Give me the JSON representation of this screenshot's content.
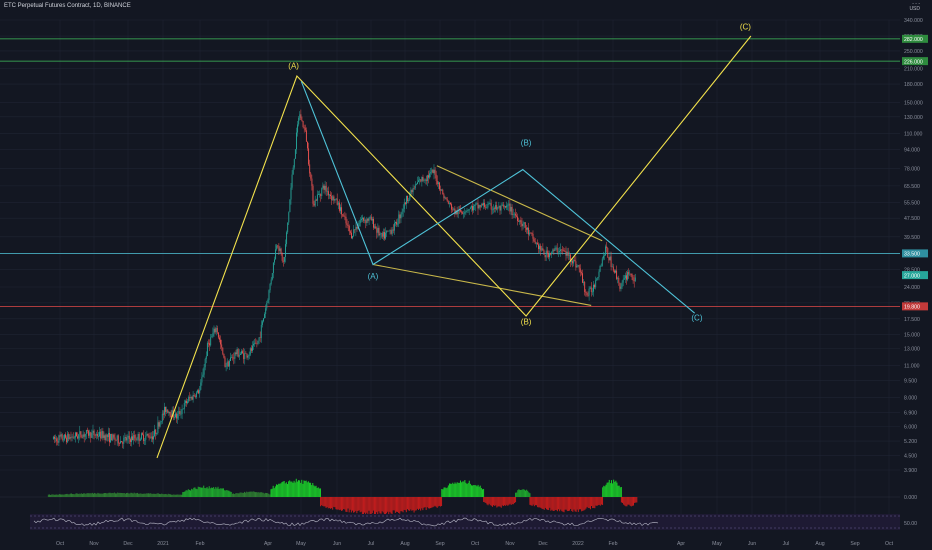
{
  "header": {
    "title": "ETC Perpetual Futures Contract, 1D, BINANCE",
    "currency_line1": "- - -",
    "currency_line2": "USD"
  },
  "colors": {
    "bg": "#131722",
    "grid": "#1f2433",
    "up": "#26a69a",
    "down": "#ef5350",
    "yellow": "#f2e14c",
    "cyan": "#4fc3d8",
    "green_line": "#3fbf5c",
    "red_line": "#e04848",
    "axis_text": "#8a8f9c"
  },
  "chart_data": {
    "type": "candlestick",
    "price_axis": {
      "scale": "log",
      "ticks": [
        3.9,
        4.5,
        5.2,
        6.0,
        6.9,
        8.0,
        9.5,
        11.0,
        13.0,
        15.0,
        17.5,
        20.5,
        24.0,
        28.5,
        33.5,
        39.5,
        47.5,
        55.5,
        65.5,
        78.0,
        94.0,
        110.0,
        130.0,
        150.0,
        180.0,
        210.0,
        250.0,
        290.0,
        340.0
      ],
      "tick_labels": [
        "3.900",
        "4.500",
        "5.200",
        "6.000",
        "6.900",
        "8.000",
        "9.500",
        "11.000",
        "13.000",
        "15.000",
        "17.500",
        "20.500",
        "24.000",
        "28.500",
        "33.500",
        "39.500",
        "47.500",
        "55.500",
        "65.500",
        "78.000",
        "94.000",
        "110.000",
        "130.000",
        "150.000",
        "180.000",
        "210.000",
        "250.000",
        "290.000",
        "340.000"
      ]
    },
    "time_axis": {
      "labels": [
        "Oct",
        "Nov",
        "Dec",
        "2021",
        "Feb",
        "Apr",
        "May",
        "Jun",
        "Jul",
        "Aug",
        "Sep",
        "Oct",
        "Nov",
        "Dec",
        "2022",
        "Feb",
        "Apr",
        "May",
        "Jun",
        "Jul",
        "Aug",
        "Sep",
        "Oct"
      ]
    },
    "close_path": [
      [
        "2020-09-25",
        5.3
      ],
      [
        "2020-10-10",
        5.4
      ],
      [
        "2020-10-25",
        5.6
      ],
      [
        "2020-11-10",
        5.5
      ],
      [
        "2020-11-25",
        5.2
      ],
      [
        "2020-12-10",
        5.4
      ],
      [
        "2020-12-25",
        5.5
      ],
      [
        "2021-01-05",
        7.2
      ],
      [
        "2021-01-15",
        6.6
      ],
      [
        "2021-01-25",
        7.8
      ],
      [
        "2021-02-05",
        8.6
      ],
      [
        "2021-02-12",
        13.5
      ],
      [
        "2021-02-20",
        16.0
      ],
      [
        "2021-02-28",
        11.0
      ],
      [
        "2021-03-10",
        12.5
      ],
      [
        "2021-03-20",
        12.2
      ],
      [
        "2021-03-30",
        14.0
      ],
      [
        "2021-04-08",
        22.0
      ],
      [
        "2021-04-16",
        38.0
      ],
      [
        "2021-04-22",
        30.0
      ],
      [
        "2021-04-30",
        75.0
      ],
      [
        "2021-05-06",
        135.0
      ],
      [
        "2021-05-12",
        110.0
      ],
      [
        "2021-05-19",
        55.0
      ],
      [
        "2021-05-28",
        65.0
      ],
      [
        "2021-06-10",
        55.0
      ],
      [
        "2021-06-22",
        40.0
      ],
      [
        "2021-07-01",
        47.0
      ],
      [
        "2021-07-10",
        47.0
      ],
      [
        "2021-07-20",
        39.0
      ],
      [
        "2021-08-01",
        44.0
      ],
      [
        "2021-08-12",
        58.0
      ],
      [
        "2021-08-22",
        68.0
      ],
      [
        "2021-09-05",
        75.0
      ],
      [
        "2021-09-15",
        58.0
      ],
      [
        "2021-09-25",
        50.0
      ],
      [
        "2021-10-05",
        52.0
      ],
      [
        "2021-10-20",
        54.0
      ],
      [
        "2021-11-05",
        52.0
      ],
      [
        "2021-11-12",
        53.0
      ],
      [
        "2021-11-25",
        45.0
      ],
      [
        "2021-12-05",
        38.0
      ],
      [
        "2021-12-15",
        33.0
      ],
      [
        "2021-12-28",
        35.0
      ],
      [
        "2022-01-05",
        33.0
      ],
      [
        "2022-01-15",
        29.0
      ],
      [
        "2022-01-22",
        22.0
      ],
      [
        "2022-01-28",
        24.0
      ],
      [
        "2022-02-08",
        35.0
      ],
      [
        "2022-02-15",
        29.0
      ],
      [
        "2022-02-22",
        24.0
      ],
      [
        "2022-03-01",
        28.0
      ],
      [
        "2022-03-08",
        25.0
      ]
    ],
    "horizontal_lines": [
      {
        "price": 282.0,
        "label": "282.000",
        "color": "green"
      },
      {
        "price": 226.0,
        "label": "226.000",
        "color": "green"
      },
      {
        "price": 33.5,
        "label": "33.500",
        "color": "cyan"
      },
      {
        "price": 27.0,
        "label": "27.000",
        "color": "current"
      },
      {
        "price": 19.8,
        "label": "19.800",
        "color": "red"
      }
    ],
    "wave_labels_yellow": [
      {
        "text": "(A)",
        "date": "2021-05-01",
        "price": 210.0
      },
      {
        "text": "(B)",
        "date": "2021-11-28",
        "price": 16.5
      },
      {
        "text": "(C)",
        "date": "2022-06-15",
        "price": 310.0
      }
    ],
    "wave_labels_cyan": [
      {
        "text": "(A)",
        "date": "2021-07-12",
        "price": 26.0
      },
      {
        "text": "(B)",
        "date": "2021-11-28",
        "price": 98.0
      },
      {
        "text": "(C)",
        "date": "2022-05-02",
        "price": 17.2
      }
    ],
    "yellow_wave": [
      [
        "2020-12-28",
        4.4
      ],
      [
        "2021-05-04",
        195.0
      ],
      [
        "2021-11-28",
        18.0
      ],
      [
        "2022-06-20",
        290.0
      ]
    ],
    "cyan_wave": [
      [
        "2021-05-08",
        185.0
      ],
      [
        "2021-07-12",
        30.0
      ],
      [
        "2021-11-25",
        77.0
      ],
      [
        "2022-04-30",
        18.5
      ]
    ],
    "wedge_upper": [
      [
        "2021-09-08",
        80.0
      ],
      [
        "2022-02-05",
        38.0
      ]
    ],
    "wedge_lower": [
      [
        "2021-07-12",
        30.0
      ],
      [
        "2022-01-26",
        20.0
      ]
    ],
    "indicator1_axis_label": "0.000",
    "indicator2_axis_label": "50.00"
  }
}
